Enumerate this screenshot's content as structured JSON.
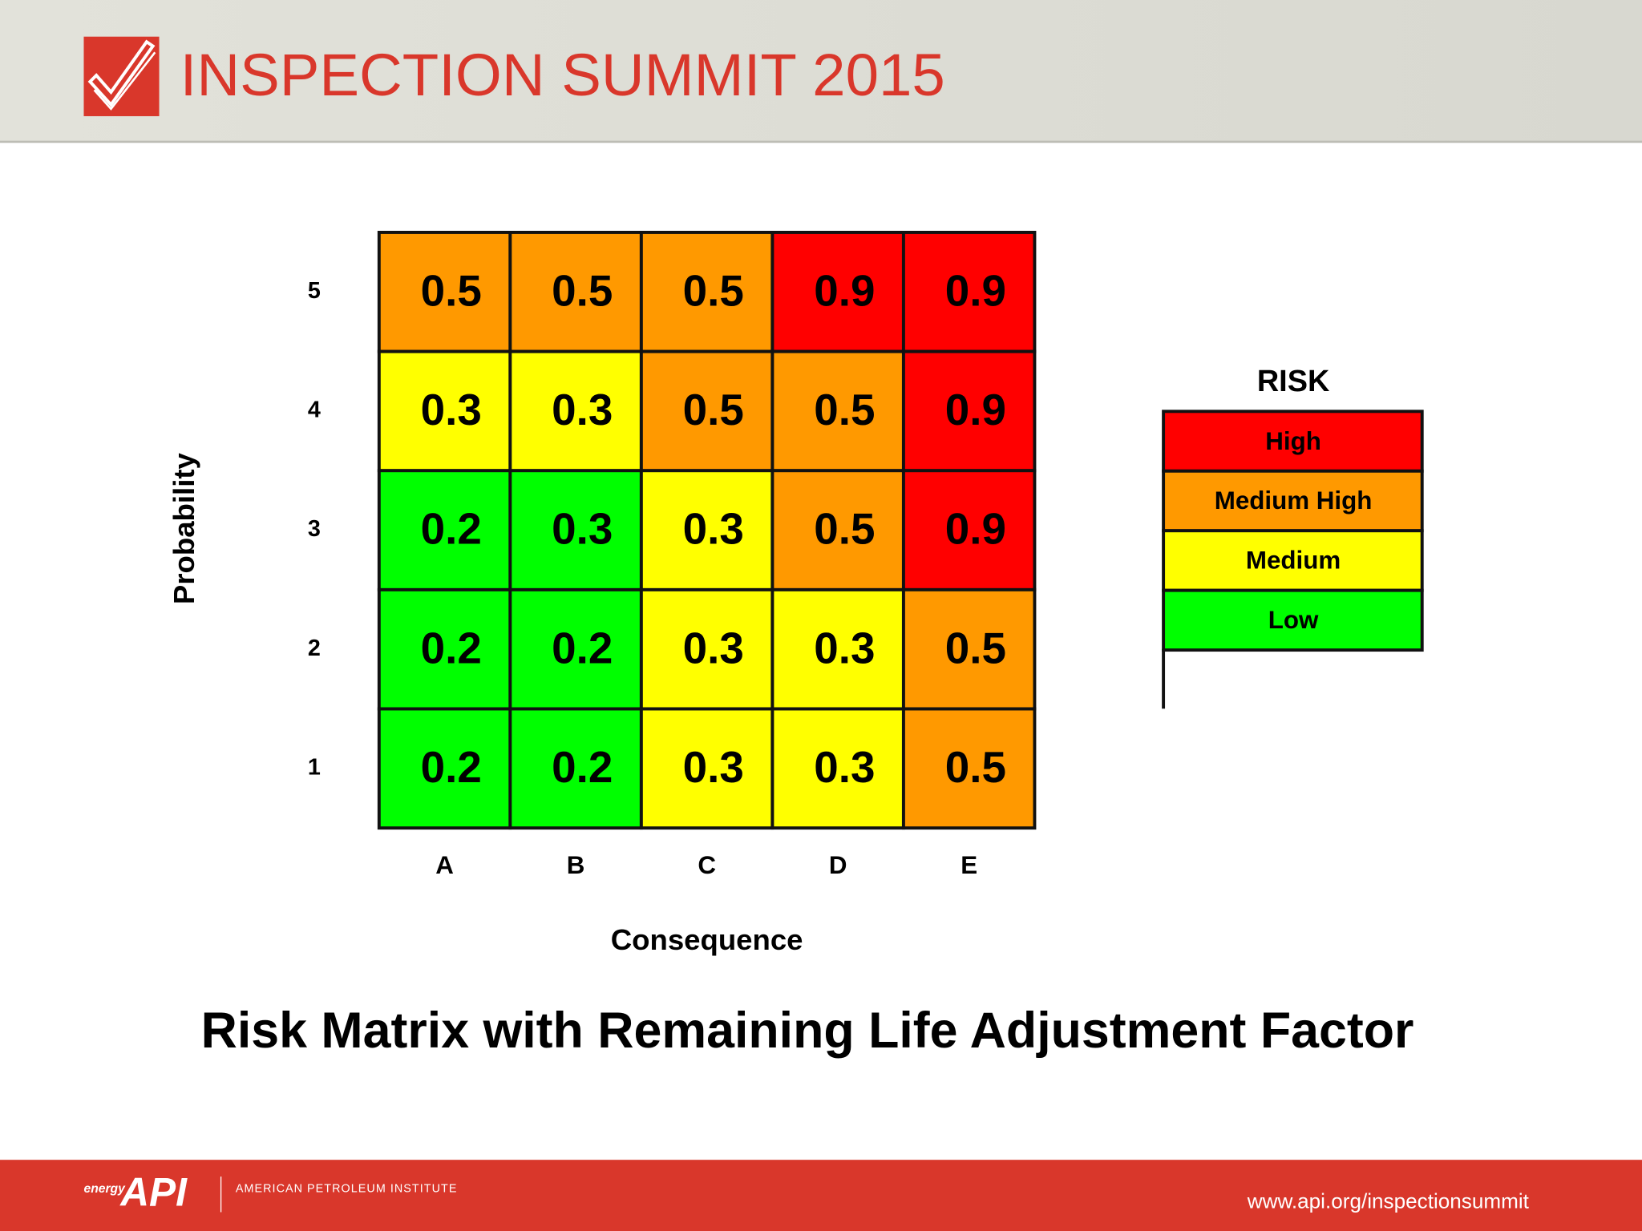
{
  "header": {
    "title": "INSPECTION SUMMIT 2015"
  },
  "matrix": {
    "y_label": "Probability",
    "x_label": "Consequence",
    "columns": [
      "A",
      "B",
      "C",
      "D",
      "E"
    ],
    "rows": [
      {
        "label": 5,
        "cells": [
          {
            "value": 0.5,
            "color": "#ff9900"
          },
          {
            "value": 0.5,
            "color": "#ff9900"
          },
          {
            "value": 0.5,
            "color": "#ff9900"
          },
          {
            "value": 0.9,
            "color": "#ff0000"
          },
          {
            "value": 0.9,
            "color": "#ff0000"
          }
        ]
      },
      {
        "label": 4,
        "cells": [
          {
            "value": 0.3,
            "color": "#ffff00"
          },
          {
            "value": 0.3,
            "color": "#ffff00"
          },
          {
            "value": 0.5,
            "color": "#ff9900"
          },
          {
            "value": 0.5,
            "color": "#ff9900"
          },
          {
            "value": 0.9,
            "color": "#ff0000"
          }
        ]
      },
      {
        "label": 3,
        "cells": [
          {
            "value": 0.2,
            "color": "#00ff00"
          },
          {
            "value": 0.3,
            "color": "#00ff00"
          },
          {
            "value": 0.3,
            "color": "#ffff00"
          },
          {
            "value": 0.5,
            "color": "#ff9900"
          },
          {
            "value": 0.9,
            "color": "#ff0000"
          }
        ]
      },
      {
        "label": 2,
        "cells": [
          {
            "value": 0.2,
            "color": "#00ff00"
          },
          {
            "value": 0.2,
            "color": "#00ff00"
          },
          {
            "value": 0.3,
            "color": "#ffff00"
          },
          {
            "value": 0.3,
            "color": "#ffff00"
          },
          {
            "value": 0.5,
            "color": "#ff9900"
          }
        ]
      },
      {
        "label": 1,
        "cells": [
          {
            "value": 0.2,
            "color": "#00ff00"
          },
          {
            "value": 0.2,
            "color": "#00ff00"
          },
          {
            "value": 0.3,
            "color": "#ffff00"
          },
          {
            "value": 0.3,
            "color": "#ffff00"
          },
          {
            "value": 0.5,
            "color": "#ff9900"
          }
        ]
      }
    ]
  },
  "legend": {
    "title": "RISK",
    "items": [
      {
        "label": "High",
        "color": "#ff0000"
      },
      {
        "label": "Medium High",
        "color": "#ff9900"
      },
      {
        "label": "Medium",
        "color": "#ffff00"
      },
      {
        "label": "Low",
        "color": "#00ff00"
      }
    ]
  },
  "caption": "Risk Matrix with Remaining Life Adjustment Factor",
  "footer": {
    "logo_small": "energy",
    "logo": "API",
    "organization": "AMERICAN PETROLEUM INSTITUTE",
    "url": "www.api.org/inspectionsummit"
  }
}
